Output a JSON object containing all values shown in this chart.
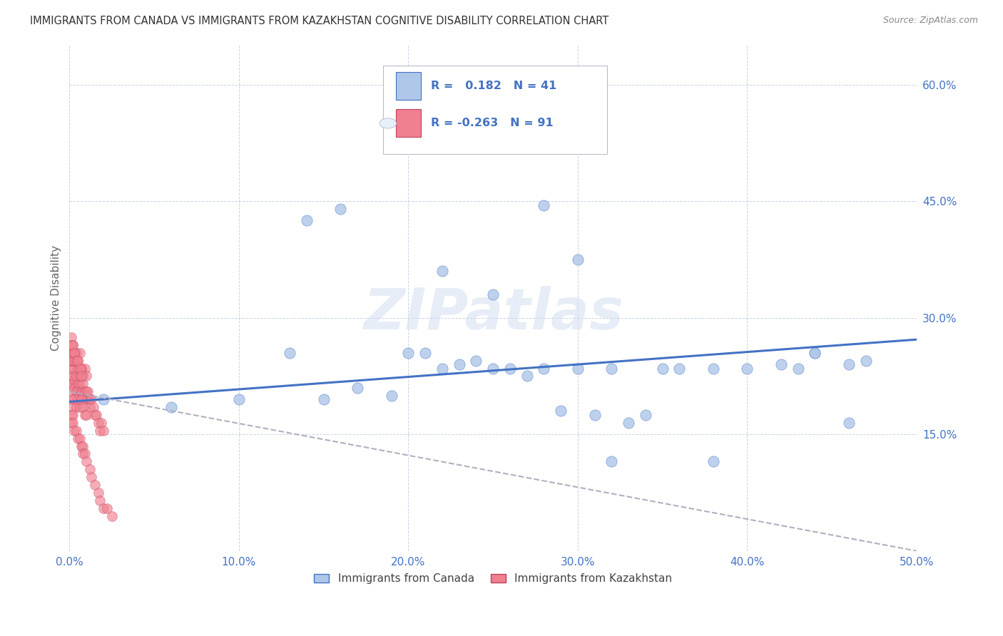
{
  "title": "IMMIGRANTS FROM CANADA VS IMMIGRANTS FROM KAZAKHSTAN COGNITIVE DISABILITY CORRELATION CHART",
  "source": "Source: ZipAtlas.com",
  "ylabel": "Cognitive Disability",
  "legend_label1": "Immigrants from Canada",
  "legend_label2": "Immigrants from Kazakhstan",
  "R1": 0.182,
  "N1": 41,
  "R2": -0.263,
  "N2": 91,
  "xlim": [
    0.0,
    0.5
  ],
  "ylim": [
    0.0,
    0.65
  ],
  "color_canada": "#aec6e8",
  "color_kazakhstan": "#f08090",
  "color_canada_edge": "#4472c4",
  "color_kazakhstan_edge": "#c04060",
  "color_canada_line": "#4472c4",
  "color_kazakhstan_line": "#b0b0c0",
  "color_axis": "#4472c4",
  "watermark": "ZIPatlas",
  "canada_x": [
    0.02,
    0.06,
    0.1,
    0.13,
    0.15,
    0.17,
    0.19,
    0.2,
    0.21,
    0.22,
    0.23,
    0.24,
    0.25,
    0.26,
    0.27,
    0.28,
    0.29,
    0.3,
    0.31,
    0.32,
    0.33,
    0.34,
    0.35,
    0.36,
    0.38,
    0.4,
    0.42,
    0.44,
    0.46,
    0.47,
    0.14,
    0.16,
    0.22,
    0.25,
    0.28,
    0.3,
    0.32,
    0.38,
    0.43,
    0.44,
    0.46
  ],
  "canada_y": [
    0.195,
    0.185,
    0.195,
    0.255,
    0.195,
    0.21,
    0.2,
    0.255,
    0.255,
    0.235,
    0.24,
    0.245,
    0.235,
    0.235,
    0.225,
    0.235,
    0.18,
    0.235,
    0.175,
    0.235,
    0.165,
    0.175,
    0.235,
    0.235,
    0.235,
    0.235,
    0.24,
    0.255,
    0.24,
    0.245,
    0.425,
    0.44,
    0.36,
    0.33,
    0.445,
    0.375,
    0.115,
    0.115,
    0.235,
    0.255,
    0.165
  ],
  "kaz_x": [
    0.001,
    0.001,
    0.002,
    0.002,
    0.003,
    0.003,
    0.004,
    0.005,
    0.005,
    0.006,
    0.006,
    0.007,
    0.007,
    0.008,
    0.008,
    0.009,
    0.009,
    0.01,
    0.011,
    0.011,
    0.012,
    0.012,
    0.013,
    0.014,
    0.015,
    0.016,
    0.017,
    0.018,
    0.019,
    0.02,
    0.001,
    0.002,
    0.003,
    0.004,
    0.005,
    0.006,
    0.007,
    0.008,
    0.009,
    0.01,
    0.001,
    0.002,
    0.003,
    0.004,
    0.005,
    0.006,
    0.007,
    0.008,
    0.009,
    0.01,
    0.001,
    0.001,
    0.002,
    0.002,
    0.003,
    0.003,
    0.004,
    0.005,
    0.006,
    0.007,
    0.001,
    0.001,
    0.002,
    0.002,
    0.003,
    0.004,
    0.005,
    0.006,
    0.007,
    0.008,
    0.001,
    0.002,
    0.003,
    0.001,
    0.002,
    0.003,
    0.004,
    0.005,
    0.006,
    0.007,
    0.008,
    0.009,
    0.01,
    0.012,
    0.013,
    0.015,
    0.017,
    0.018,
    0.02,
    0.022,
    0.025
  ],
  "kaz_y": [
    0.215,
    0.205,
    0.225,
    0.215,
    0.22,
    0.21,
    0.205,
    0.215,
    0.205,
    0.215,
    0.195,
    0.205,
    0.195,
    0.205,
    0.215,
    0.205,
    0.195,
    0.205,
    0.195,
    0.205,
    0.195,
    0.185,
    0.195,
    0.185,
    0.175,
    0.175,
    0.165,
    0.155,
    0.165,
    0.155,
    0.235,
    0.225,
    0.235,
    0.225,
    0.235,
    0.225,
    0.235,
    0.225,
    0.235,
    0.225,
    0.195,
    0.185,
    0.195,
    0.185,
    0.195,
    0.185,
    0.195,
    0.185,
    0.175,
    0.175,
    0.255,
    0.245,
    0.255,
    0.245,
    0.255,
    0.245,
    0.255,
    0.245,
    0.255,
    0.235,
    0.175,
    0.165,
    0.175,
    0.165,
    0.155,
    0.155,
    0.145,
    0.145,
    0.135,
    0.135,
    0.275,
    0.265,
    0.255,
    0.265,
    0.265,
    0.255,
    0.245,
    0.245,
    0.235,
    0.225,
    0.125,
    0.125,
    0.115,
    0.105,
    0.095,
    0.085,
    0.075,
    0.065,
    0.055,
    0.055,
    0.045
  ],
  "canada_line_x": [
    0.0,
    0.5
  ],
  "canada_line_y": [
    0.192,
    0.272
  ],
  "kaz_line_x": [
    0.0,
    0.5
  ],
  "kaz_line_y": [
    0.205,
    0.0
  ]
}
